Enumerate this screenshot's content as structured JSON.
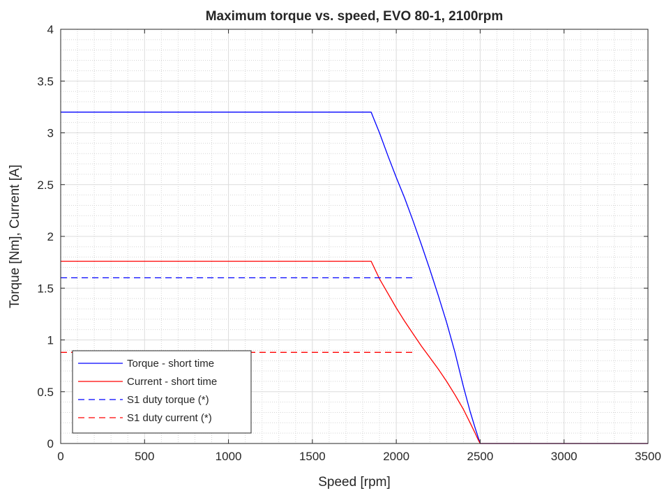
{
  "chart_data": {
    "type": "line",
    "title": "Maximum torque vs. speed, EVO 80-1, 2100rpm",
    "xlabel": "Speed [rpm]",
    "ylabel": "Torque [Nm], Current [A]",
    "xlim": [
      0,
      3500
    ],
    "ylim": [
      0,
      4
    ],
    "xticks": [
      "0",
      "500",
      "1000",
      "1500",
      "2000",
      "2500",
      "3000",
      "3500"
    ],
    "yticks": [
      "0",
      "0.5",
      "1",
      "1.5",
      "2",
      "2.5",
      "3",
      "3.5",
      "4"
    ],
    "grid": true,
    "minor_grid": true,
    "legend_position": "bottom-left",
    "series": [
      {
        "name": "Torque - short time",
        "color": "#0000ff",
        "style": "solid",
        "x": [
          0,
          1850,
          1870,
          1900,
          1950,
          2000,
          2050,
          2100,
          2150,
          2200,
          2250,
          2300,
          2350,
          2400,
          2440,
          2470,
          2490,
          2500,
          3500
        ],
        "y": [
          3.2,
          3.2,
          3.12,
          3.0,
          2.78,
          2.57,
          2.37,
          2.15,
          1.92,
          1.68,
          1.43,
          1.17,
          0.88,
          0.55,
          0.31,
          0.15,
          0.05,
          0,
          0
        ]
      },
      {
        "name": "Current - short time",
        "color": "#ff0000",
        "style": "solid",
        "x": [
          0,
          1850,
          1900,
          1950,
          2000,
          2050,
          2100,
          2150,
          2200,
          2250,
          2300,
          2350,
          2400,
          2440,
          2470,
          2490,
          2500,
          3500
        ],
        "y": [
          1.76,
          1.76,
          1.59,
          1.45,
          1.31,
          1.18,
          1.06,
          0.94,
          0.83,
          0.72,
          0.6,
          0.47,
          0.33,
          0.2,
          0.1,
          0.03,
          0,
          0
        ]
      },
      {
        "name": "S1 duty torque (*)",
        "color": "#0000ff",
        "style": "dashed",
        "x": [
          0,
          2100
        ],
        "y": [
          1.6,
          1.6
        ]
      },
      {
        "name": "S1 duty current (*)",
        "color": "#ff0000",
        "style": "dashed",
        "x": [
          0,
          2100
        ],
        "y": [
          0.88,
          0.88
        ]
      }
    ]
  }
}
